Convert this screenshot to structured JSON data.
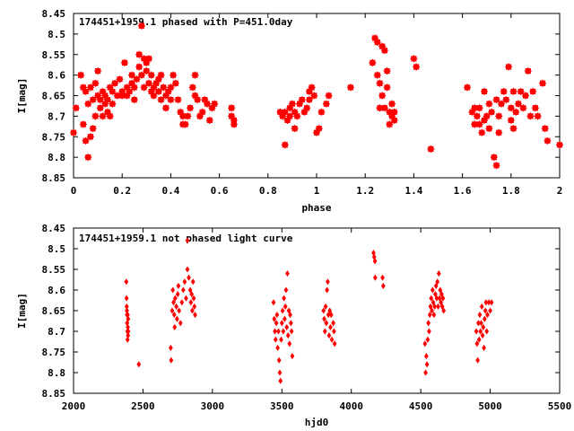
{
  "chart_data": [
    {
      "type": "scatter",
      "title": "174451+1959.1 phased with P=451.0day",
      "xlabel": "phase",
      "ylabel": "I[mag]",
      "xlim": [
        0,
        2
      ],
      "ylim": [
        8.45,
        8.85
      ],
      "y_inverted": true,
      "x_ticks": [
        "0",
        "0.2",
        "0.4",
        "0.6",
        "0.8",
        "1",
        "1.2",
        "1.4",
        "1.6",
        "1.8",
        "2"
      ],
      "x_tick_values": [
        0,
        0.2,
        0.4,
        0.6,
        0.8,
        1,
        1.2,
        1.4,
        1.6,
        1.8,
        2
      ],
      "y_ticks": [
        "8.45",
        "8.5",
        "8.55",
        "8.6",
        "8.65",
        "8.7",
        "8.75",
        "8.8",
        "8.85"
      ],
      "y_tick_values": [
        8.45,
        8.5,
        8.55,
        8.6,
        8.65,
        8.7,
        8.75,
        8.8,
        8.85
      ],
      "marker_color": "#ff0000",
      "marker": "plus-box",
      "grid": false,
      "points": [
        [
          0.0,
          8.74
        ],
        [
          0.01,
          8.68
        ],
        [
          0.03,
          8.6
        ],
        [
          0.04,
          8.63
        ],
        [
          0.04,
          8.72
        ],
        [
          0.05,
          8.64
        ],
        [
          0.05,
          8.76
        ],
        [
          0.06,
          8.8
        ],
        [
          0.06,
          8.67
        ],
        [
          0.07,
          8.63
        ],
        [
          0.07,
          8.75
        ],
        [
          0.08,
          8.66
        ],
        [
          0.08,
          8.73
        ],
        [
          0.09,
          8.62
        ],
        [
          0.09,
          8.7
        ],
        [
          0.1,
          8.59
        ],
        [
          0.1,
          8.65
        ],
        [
          0.11,
          8.68
        ],
        [
          0.11,
          8.66
        ],
        [
          0.12,
          8.64
        ],
        [
          0.12,
          8.7
        ],
        [
          0.13,
          8.67
        ],
        [
          0.13,
          8.65
        ],
        [
          0.14,
          8.69
        ],
        [
          0.14,
          8.66
        ],
        [
          0.15,
          8.63
        ],
        [
          0.15,
          8.7
        ],
        [
          0.16,
          8.64
        ],
        [
          0.16,
          8.67
        ],
        [
          0.17,
          8.62
        ],
        [
          0.18,
          8.65
        ],
        [
          0.19,
          8.61
        ],
        [
          0.2,
          8.64
        ],
        [
          0.2,
          8.65
        ],
        [
          0.21,
          8.57
        ],
        [
          0.22,
          8.65
        ],
        [
          0.22,
          8.63
        ],
        [
          0.23,
          8.64
        ],
        [
          0.24,
          8.62
        ],
        [
          0.24,
          8.6
        ],
        [
          0.25,
          8.63
        ],
        [
          0.25,
          8.66
        ],
        [
          0.26,
          8.61
        ],
        [
          0.27,
          8.58
        ],
        [
          0.27,
          8.55
        ],
        [
          0.28,
          8.48
        ],
        [
          0.28,
          8.6
        ],
        [
          0.29,
          8.56
        ],
        [
          0.29,
          8.63
        ],
        [
          0.3,
          8.57
        ],
        [
          0.3,
          8.59
        ],
        [
          0.31,
          8.56
        ],
        [
          0.31,
          8.62
        ],
        [
          0.32,
          8.6
        ],
        [
          0.32,
          8.64
        ],
        [
          0.33,
          8.63
        ],
        [
          0.33,
          8.65
        ],
        [
          0.34,
          8.62
        ],
        [
          0.35,
          8.64
        ],
        [
          0.35,
          8.61
        ],
        [
          0.36,
          8.66
        ],
        [
          0.36,
          8.6
        ],
        [
          0.37,
          8.63
        ],
        [
          0.38,
          8.65
        ],
        [
          0.38,
          8.68
        ],
        [
          0.39,
          8.64
        ],
        [
          0.4,
          8.63
        ],
        [
          0.4,
          8.66
        ],
        [
          0.41,
          8.6
        ],
        [
          0.42,
          8.62
        ],
        [
          0.43,
          8.66
        ],
        [
          0.44,
          8.69
        ],
        [
          0.45,
          8.7
        ],
        [
          0.45,
          8.72
        ],
        [
          0.46,
          8.72
        ],
        [
          0.47,
          8.7
        ],
        [
          0.48,
          8.68
        ],
        [
          0.49,
          8.63
        ],
        [
          0.5,
          8.6
        ],
        [
          0.5,
          8.65
        ],
        [
          0.51,
          8.66
        ],
        [
          0.52,
          8.7
        ],
        [
          0.53,
          8.69
        ],
        [
          0.54,
          8.66
        ],
        [
          0.55,
          8.67
        ],
        [
          0.56,
          8.71
        ],
        [
          0.57,
          8.68
        ],
        [
          0.58,
          8.67
        ],
        [
          0.65,
          8.68
        ],
        [
          0.65,
          8.7
        ],
        [
          0.66,
          8.72
        ],
        [
          0.66,
          8.71
        ],
        [
          0.85,
          8.69
        ],
        [
          0.86,
          8.7
        ],
        [
          0.87,
          8.77
        ],
        [
          0.87,
          8.69
        ],
        [
          0.88,
          8.71
        ],
        [
          0.89,
          8.68
        ],
        [
          0.89,
          8.7
        ],
        [
          0.9,
          8.67
        ],
        [
          0.91,
          8.73
        ],
        [
          0.91,
          8.69
        ],
        [
          0.92,
          8.7
        ],
        [
          0.93,
          8.67
        ],
        [
          0.94,
          8.66
        ],
        [
          0.95,
          8.69
        ],
        [
          0.96,
          8.68
        ],
        [
          0.97,
          8.64
        ],
        [
          0.97,
          8.66
        ],
        [
          0.98,
          8.63
        ],
        [
          0.99,
          8.65
        ],
        [
          1.0,
          8.74
        ],
        [
          1.01,
          8.73
        ],
        [
          1.02,
          8.69
        ],
        [
          1.04,
          8.67
        ],
        [
          1.05,
          8.65
        ],
        [
          1.14,
          8.63
        ],
        [
          1.23,
          8.57
        ],
        [
          1.24,
          8.51
        ],
        [
          1.25,
          8.52
        ],
        [
          1.25,
          8.6
        ],
        [
          1.26,
          8.62
        ],
        [
          1.26,
          8.68
        ],
        [
          1.27,
          8.53
        ],
        [
          1.27,
          8.65
        ],
        [
          1.28,
          8.54
        ],
        [
          1.28,
          8.68
        ],
        [
          1.29,
          8.59
        ],
        [
          1.29,
          8.63
        ],
        [
          1.3,
          8.69
        ],
        [
          1.3,
          8.72
        ],
        [
          1.31,
          8.7
        ],
        [
          1.31,
          8.67
        ],
        [
          1.32,
          8.71
        ],
        [
          1.32,
          8.69
        ],
        [
          1.4,
          8.56
        ],
        [
          1.41,
          8.58
        ],
        [
          1.47,
          8.78
        ],
        [
          1.62,
          8.63
        ],
        [
          1.64,
          8.69
        ],
        [
          1.65,
          8.72
        ],
        [
          1.65,
          8.68
        ],
        [
          1.66,
          8.7
        ],
        [
          1.67,
          8.72
        ],
        [
          1.67,
          8.68
        ],
        [
          1.68,
          8.74
        ],
        [
          1.69,
          8.64
        ],
        [
          1.69,
          8.71
        ],
        [
          1.7,
          8.7
        ],
        [
          1.71,
          8.67
        ],
        [
          1.71,
          8.73
        ],
        [
          1.72,
          8.69
        ],
        [
          1.73,
          8.8
        ],
        [
          1.74,
          8.82
        ],
        [
          1.74,
          8.66
        ],
        [
          1.75,
          8.7
        ],
        [
          1.75,
          8.74
        ],
        [
          1.76,
          8.67
        ],
        [
          1.77,
          8.64
        ],
        [
          1.78,
          8.66
        ],
        [
          1.79,
          8.58
        ],
        [
          1.8,
          8.68
        ],
        [
          1.8,
          8.71
        ],
        [
          1.81,
          8.64
        ],
        [
          1.81,
          8.73
        ],
        [
          1.82,
          8.69
        ],
        [
          1.83,
          8.67
        ],
        [
          1.84,
          8.64
        ],
        [
          1.85,
          8.68
        ],
        [
          1.86,
          8.65
        ],
        [
          1.87,
          8.59
        ],
        [
          1.88,
          8.7
        ],
        [
          1.89,
          8.64
        ],
        [
          1.9,
          8.68
        ],
        [
          1.91,
          8.7
        ],
        [
          1.93,
          8.62
        ],
        [
          1.94,
          8.73
        ],
        [
          1.95,
          8.76
        ],
        [
          2.0,
          8.77
        ]
      ]
    },
    {
      "type": "scatter",
      "title": "174451+1959.1 not phased light curve",
      "xlabel": "hjd0",
      "ylabel": "I[mag]",
      "xlim": [
        2000,
        5500
      ],
      "ylim": [
        8.45,
        8.85
      ],
      "y_inverted": true,
      "x_ticks": [
        "2000",
        "2500",
        "3000",
        "3500",
        "4000",
        "4500",
        "5000",
        "5500"
      ],
      "x_tick_values": [
        2000,
        2500,
        3000,
        3500,
        4000,
        4500,
        5000,
        5500
      ],
      "y_ticks": [
        "8.45",
        "8.5",
        "8.55",
        "8.6",
        "8.65",
        "8.7",
        "8.75",
        "8.8",
        "8.85"
      ],
      "y_tick_values": [
        8.45,
        8.5,
        8.55,
        8.6,
        8.65,
        8.7,
        8.75,
        8.8,
        8.85
      ],
      "marker_color": "#ff0000",
      "marker": "diamond",
      "grid": false,
      "points": [
        [
          2380,
          8.58
        ],
        [
          2382,
          8.62
        ],
        [
          2383,
          8.64
        ],
        [
          2384,
          8.65
        ],
        [
          2385,
          8.66
        ],
        [
          2386,
          8.68
        ],
        [
          2388,
          8.7
        ],
        [
          2389,
          8.72
        ],
        [
          2390,
          8.66
        ],
        [
          2391,
          8.69
        ],
        [
          2392,
          8.71
        ],
        [
          2393,
          8.67
        ],
        [
          2394,
          8.7
        ],
        [
          2470,
          8.78
        ],
        [
          2700,
          8.74
        ],
        [
          2703,
          8.77
        ],
        [
          2710,
          8.65
        ],
        [
          2715,
          8.6
        ],
        [
          2720,
          8.63
        ],
        [
          2725,
          8.66
        ],
        [
          2728,
          8.69
        ],
        [
          2732,
          8.62
        ],
        [
          2740,
          8.64
        ],
        [
          2745,
          8.67
        ],
        [
          2750,
          8.61
        ],
        [
          2755,
          8.59
        ],
        [
          2760,
          8.65
        ],
        [
          2770,
          8.68
        ],
        [
          2780,
          8.63
        ],
        [
          2790,
          8.6
        ],
        [
          2800,
          8.58
        ],
        [
          2810,
          8.62
        ],
        [
          2820,
          8.55
        ],
        [
          2830,
          8.57
        ],
        [
          2840,
          8.6
        ],
        [
          2845,
          8.63
        ],
        [
          2850,
          8.61
        ],
        [
          2855,
          8.65
        ],
        [
          2860,
          8.58
        ],
        [
          2865,
          8.62
        ],
        [
          2870,
          8.64
        ],
        [
          2875,
          8.66
        ],
        [
          2820,
          8.48
        ],
        [
          3440,
          8.63
        ],
        [
          3445,
          8.67
        ],
        [
          3450,
          8.7
        ],
        [
          3455,
          8.72
        ],
        [
          3460,
          8.68
        ],
        [
          3465,
          8.66
        ],
        [
          3470,
          8.74
        ],
        [
          3475,
          8.7
        ],
        [
          3480,
          8.77
        ],
        [
          3485,
          8.8
        ],
        [
          3490,
          8.82
        ],
        [
          3495,
          8.72
        ],
        [
          3500,
          8.68
        ],
        [
          3505,
          8.65
        ],
        [
          3510,
          8.7
        ],
        [
          3515,
          8.62
        ],
        [
          3520,
          8.67
        ],
        [
          3525,
          8.64
        ],
        [
          3530,
          8.6
        ],
        [
          3535,
          8.69
        ],
        [
          3540,
          8.56
        ],
        [
          3545,
          8.71
        ],
        [
          3550,
          8.65
        ],
        [
          3555,
          8.73
        ],
        [
          3560,
          8.66
        ],
        [
          3565,
          8.68
        ],
        [
          3570,
          8.7
        ],
        [
          3575,
          8.76
        ],
        [
          3800,
          8.65
        ],
        [
          3805,
          8.67
        ],
        [
          3810,
          8.7
        ],
        [
          3815,
          8.64
        ],
        [
          3820,
          8.68
        ],
        [
          3825,
          8.6
        ],
        [
          3830,
          8.58
        ],
        [
          3835,
          8.66
        ],
        [
          3840,
          8.71
        ],
        [
          3845,
          8.65
        ],
        [
          3850,
          8.69
        ],
        [
          3855,
          8.66
        ],
        [
          3860,
          8.72
        ],
        [
          3870,
          8.68
        ],
        [
          3875,
          8.7
        ],
        [
          3880,
          8.73
        ],
        [
          4160,
          8.51
        ],
        [
          4165,
          8.52
        ],
        [
          4170,
          8.53
        ],
        [
          4172,
          8.57
        ],
        [
          4225,
          8.57
        ],
        [
          4230,
          8.59
        ],
        [
          4530,
          8.73
        ],
        [
          4535,
          8.8
        ],
        [
          4540,
          8.76
        ],
        [
          4545,
          8.78
        ],
        [
          4550,
          8.72
        ],
        [
          4555,
          8.68
        ],
        [
          4560,
          8.7
        ],
        [
          4565,
          8.66
        ],
        [
          4570,
          8.64
        ],
        [
          4575,
          8.62
        ],
        [
          4580,
          8.65
        ],
        [
          4585,
          8.6
        ],
        [
          4590,
          8.63
        ],
        [
          4595,
          8.66
        ],
        [
          4600,
          8.64
        ],
        [
          4605,
          8.61
        ],
        [
          4610,
          8.59
        ],
        [
          4615,
          8.62
        ],
        [
          4620,
          8.58
        ],
        [
          4625,
          8.64
        ],
        [
          4630,
          8.56
        ],
        [
          4635,
          8.62
        ],
        [
          4640,
          8.6
        ],
        [
          4645,
          8.63
        ],
        [
          4650,
          8.61
        ],
        [
          4655,
          8.64
        ],
        [
          4660,
          8.62
        ],
        [
          4665,
          8.65
        ],
        [
          4900,
          8.7
        ],
        [
          4905,
          8.73
        ],
        [
          4910,
          8.77
        ],
        [
          4915,
          8.68
        ],
        [
          4920,
          8.72
        ],
        [
          4925,
          8.66
        ],
        [
          4930,
          8.7
        ],
        [
          4935,
          8.68
        ],
        [
          4940,
          8.64
        ],
        [
          4945,
          8.71
        ],
        [
          4950,
          8.69
        ],
        [
          4955,
          8.74
        ],
        [
          4960,
          8.67
        ],
        [
          4965,
          8.65
        ],
        [
          4970,
          8.63
        ],
        [
          4975,
          8.7
        ],
        [
          4980,
          8.66
        ],
        [
          4990,
          8.63
        ],
        [
          5000,
          8.65
        ],
        [
          5010,
          8.63
        ]
      ]
    }
  ]
}
